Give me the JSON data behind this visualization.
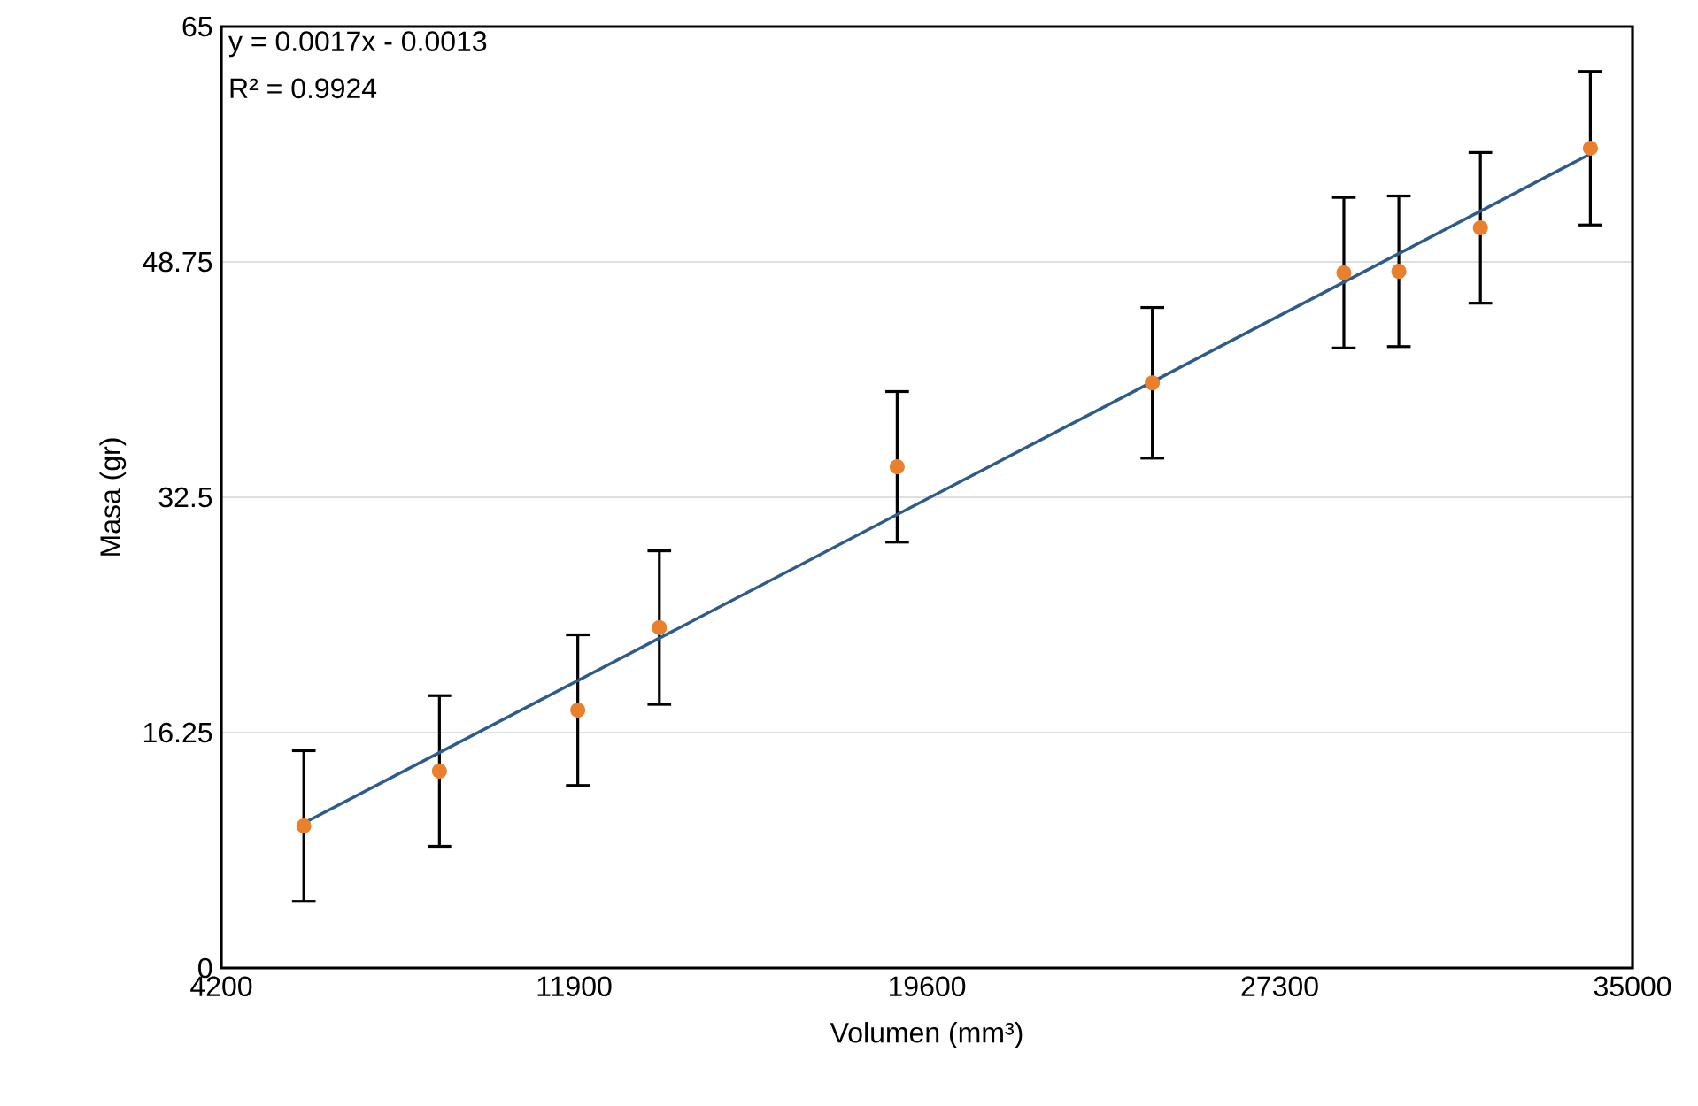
{
  "chart_data": {
    "type": "scatter",
    "xlabel": "Volumen (mm³)",
    "ylabel": "Masa (gr)",
    "annotations": [
      "y = 0.0017x - 0.0013",
      "R² = 0.9924"
    ],
    "xlim": [
      4200,
      35000
    ],
    "xticks": [
      4200,
      11900,
      19600,
      27300,
      35000
    ],
    "ylim": [
      0,
      65
    ],
    "yticks": [
      0,
      16.25,
      32.5,
      48.75,
      65
    ],
    "grid": "y",
    "series": [
      {
        "color": "#e8802e",
        "marker": "circle",
        "x": [
          6000,
          8960,
          11980,
          13760,
          18950,
          24520,
          28700,
          29900,
          31680,
          34080
        ],
        "values": [
          9.8,
          13.6,
          17.8,
          23.5,
          34.6,
          40.4,
          48.0,
          48.1,
          51.1,
          56.6
        ],
        "errors": [
          5.2,
          5.2,
          5.2,
          5.3,
          5.2,
          5.2,
          5.2,
          5.2,
          5.2,
          5.3
        ]
      },
      {
        "type": "line",
        "color": "#2e5c8a",
        "marker": "none",
        "x": [
          6000,
          34080
        ],
        "values": [
          10.0,
          56.2
        ]
      }
    ]
  }
}
